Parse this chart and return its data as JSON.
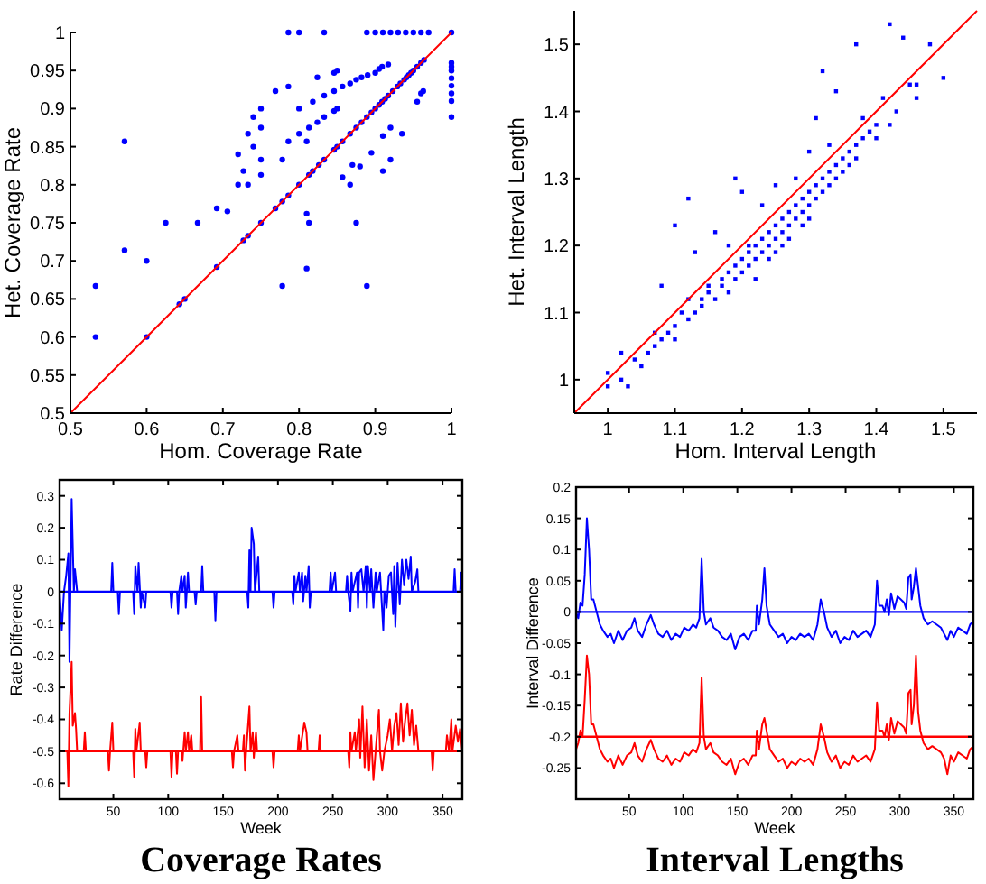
{
  "chart_data": [
    {
      "type": "scatter",
      "xlabel": "Hom. Coverage Rate",
      "ylabel": "Het. Coverage Rate",
      "xlim": [
        0.5,
        1
      ],
      "ylim": [
        0.5,
        1
      ],
      "xticks": [
        0.5,
        0.6,
        0.7,
        0.8,
        0.9,
        1
      ],
      "yticks": [
        0.5,
        0.55,
        0.6,
        0.65,
        0.7,
        0.75,
        0.8,
        0.85,
        0.9,
        0.95,
        1
      ],
      "series": [
        {
          "type": "scatter",
          "marker": "circle",
          "color": "#0000ff",
          "x": [
            0.533,
            0.533,
            0.571,
            0.571,
            0.6,
            0.625,
            0.667,
            0.692,
            0.706,
            0.72,
            0.72,
            0.727,
            0.733,
            0.733,
            0.74,
            0.74,
            0.75,
            0.75,
            0.75,
            0.75,
            0.769,
            0.778,
            0.778,
            0.786,
            0.786,
            0.786,
            0.8,
            0.8,
            0.8,
            0.81,
            0.81,
            0.81,
            0.813,
            0.813,
            0.818,
            0.824,
            0.824,
            0.833,
            0.833,
            0.833,
            0.846,
            0.846,
            0.846,
            0.85,
            0.85,
            0.857,
            0.857,
            0.867,
            0.867,
            0.87,
            0.875,
            0.875,
            0.88,
            0.882,
            0.889,
            0.889,
            0.89,
            0.895,
            0.9,
            0.905,
            0.909,
            0.91,
            0.91,
            0.917,
            0.92,
            0.92,
            0.9,
            0.91,
            0.92,
            0.93,
            0.94,
            0.95,
            0.96,
            0.97,
            0.935,
            0.955,
            0.96,
            0.963,
            1,
            1,
            1,
            1,
            1,
            1,
            1,
            1,
            1,
            0.6,
            0.643,
            0.65,
            0.692,
            0.727,
            0.733,
            0.75,
            0.769,
            0.778,
            0.786,
            0.8,
            0.813,
            0.818,
            0.826,
            0.833,
            0.846,
            0.85,
            0.857,
            0.867,
            0.875,
            0.882,
            0.889,
            0.895,
            0.9,
            0.905,
            0.909,
            0.913,
            0.917,
            0.923,
            0.929,
            0.933,
            0.938,
            0.941,
            0.944,
            0.947,
            0.95,
            0.955,
            0.96,
            0.964
          ],
          "values": [
            0.667,
            0.6,
            0.857,
            0.714,
            0.7,
            0.75,
            0.75,
            0.769,
            0.765,
            0.84,
            0.8,
            0.818,
            0.867,
            0.8,
            0.889,
            0.85,
            0.9,
            0.875,
            0.833,
            0.813,
            0.923,
            0.833,
            0.667,
            0.929,
            0.857,
            1,
            1,
            0.9,
            0.867,
            0.762,
            0.69,
            0.857,
            0.75,
            0.875,
            0.909,
            0.941,
            0.882,
            1,
            0.917,
            0.889,
            0.923,
            0.897,
            0.947,
            0.95,
            0.9,
            0.929,
            0.81,
            0.933,
            0.8,
            0.826,
            0.938,
            0.75,
            0.824,
            0.941,
            1,
            0.667,
            0.944,
            0.842,
            0.947,
            0.952,
            0.955,
            0.864,
            0.818,
            0.958,
            0.875,
            0.833,
            1,
            1,
            1,
            1,
            1,
            1,
            1,
            1,
            0.867,
            0.909,
            0.92,
            0.923,
            1,
            0.96,
            0.955,
            0.95,
            0.94,
            0.93,
            0.92,
            0.91,
            0.889,
            0.6,
            0.643,
            0.65,
            0.692,
            0.727,
            0.733,
            0.75,
            0.769,
            0.778,
            0.786,
            0.8,
            0.813,
            0.818,
            0.826,
            0.833,
            0.846,
            0.85,
            0.857,
            0.867,
            0.875,
            0.882,
            0.889,
            0.895,
            0.9,
            0.905,
            0.909,
            0.913,
            0.917,
            0.923,
            0.929,
            0.933,
            0.938,
            0.941,
            0.944,
            0.947,
            0.95,
            0.955,
            0.96,
            0.964
          ]
        },
        {
          "type": "line",
          "color": "#ff0000",
          "x": [
            0.5,
            1
          ],
          "values": [
            0.5,
            1
          ]
        }
      ]
    },
    {
      "type": "scatter",
      "xlabel": "Hom. Interval Length",
      "ylabel": "Het. Interval Length",
      "xlim": [
        0.95,
        1.55
      ],
      "ylim": [
        0.95,
        1.55
      ],
      "xticks": [
        1,
        1.1,
        1.2,
        1.3,
        1.4,
        1.5
      ],
      "yticks": [
        1,
        1.1,
        1.2,
        1.3,
        1.4,
        1.5
      ],
      "series": [
        {
          "type": "scatter",
          "marker": "square",
          "color": "#0000ff",
          "x": [
            1.0,
            1.0,
            1.02,
            1.02,
            1.03,
            1.04,
            1.05,
            1.06,
            1.07,
            1.07,
            1.08,
            1.08,
            1.09,
            1.1,
            1.1,
            1.1,
            1.11,
            1.12,
            1.12,
            1.12,
            1.13,
            1.13,
            1.14,
            1.14,
            1.15,
            1.15,
            1.16,
            1.16,
            1.17,
            1.17,
            1.18,
            1.18,
            1.18,
            1.19,
            1.19,
            1.19,
            1.2,
            1.2,
            1.2,
            1.21,
            1.21,
            1.21,
            1.22,
            1.22,
            1.22,
            1.23,
            1.23,
            1.23,
            1.24,
            1.24,
            1.24,
            1.25,
            1.25,
            1.25,
            1.25,
            1.26,
            1.26,
            1.26,
            1.27,
            1.27,
            1.27,
            1.28,
            1.28,
            1.28,
            1.29,
            1.29,
            1.29,
            1.3,
            1.3,
            1.3,
            1.3,
            1.31,
            1.31,
            1.31,
            1.32,
            1.32,
            1.32,
            1.33,
            1.33,
            1.33,
            1.34,
            1.34,
            1.34,
            1.35,
            1.35,
            1.36,
            1.36,
            1.37,
            1.37,
            1.37,
            1.38,
            1.38,
            1.39,
            1.4,
            1.4,
            1.41,
            1.42,
            1.42,
            1.43,
            1.44,
            1.45,
            1.46,
            1.46,
            1.48,
            1.5
          ],
          "values": [
            0.99,
            1.01,
            1.04,
            1.0,
            0.99,
            1.03,
            1.02,
            1.04,
            1.05,
            1.07,
            1.14,
            1.06,
            1.07,
            1.08,
            1.06,
            1.23,
            1.1,
            1.09,
            1.12,
            1.27,
            1.1,
            1.19,
            1.12,
            1.11,
            1.13,
            1.14,
            1.12,
            1.22,
            1.15,
            1.14,
            1.16,
            1.13,
            1.2,
            1.3,
            1.17,
            1.15,
            1.18,
            1.16,
            1.28,
            1.19,
            1.17,
            1.2,
            1.2,
            1.18,
            1.15,
            1.21,
            1.19,
            1.26,
            1.22,
            1.2,
            1.18,
            1.23,
            1.21,
            1.19,
            1.29,
            1.24,
            1.22,
            1.2,
            1.25,
            1.23,
            1.21,
            1.26,
            1.24,
            1.3,
            1.27,
            1.25,
            1.23,
            1.28,
            1.26,
            1.24,
            1.34,
            1.29,
            1.27,
            1.39,
            1.3,
            1.28,
            1.46,
            1.31,
            1.29,
            1.35,
            1.32,
            1.3,
            1.43,
            1.33,
            1.31,
            1.34,
            1.32,
            1.35,
            1.33,
            1.5,
            1.36,
            1.39,
            1.37,
            1.38,
            1.36,
            1.42,
            1.38,
            1.53,
            1.4,
            1.51,
            1.44,
            1.42,
            1.44,
            1.5,
            1.45
          ]
        },
        {
          "type": "line",
          "color": "#ff0000",
          "x": [
            0.95,
            1.55
          ],
          "values": [
            0.95,
            1.55
          ]
        }
      ]
    },
    {
      "type": "line",
      "xlabel": "Week",
      "ylabel": "Rate Difference",
      "xlim": [
        1,
        368
      ],
      "ylim": [
        -0.65,
        0.35
      ],
      "xticks": [
        50,
        100,
        150,
        200,
        250,
        300,
        350
      ],
      "yticks": [
        -0.6,
        -0.5,
        -0.4,
        -0.3,
        -0.2,
        -0.1,
        0,
        0.1,
        0.2,
        0.3
      ],
      "annotations": [
        "Coverage Rates"
      ],
      "ref_lines": [
        {
          "axis": "y",
          "value": 0,
          "color": "#0000ff"
        },
        {
          "axis": "y",
          "value": -0.5,
          "color": "#ff0000"
        }
      ],
      "series": [
        {
          "color": "#0000ff",
          "x": [
            1,
            3,
            5,
            7,
            9,
            10,
            12,
            14,
            15,
            17,
            48,
            49,
            50,
            54,
            55,
            56,
            68,
            69,
            70,
            72,
            73,
            75,
            76,
            79,
            80,
            102,
            103,
            104,
            108,
            109,
            110,
            112,
            113,
            115,
            116,
            118,
            119,
            124,
            125,
            126,
            130,
            131,
            132,
            142,
            143,
            144,
            172,
            173,
            174,
            175,
            176,
            178,
            179,
            182,
            183,
            195,
            196,
            197,
            213,
            214,
            215,
            216,
            219,
            220,
            222,
            223,
            225,
            226,
            228,
            229,
            230,
            247,
            248,
            249,
            252,
            253,
            262,
            263,
            264,
            266,
            267,
            268,
            272,
            273,
            274,
            276,
            278,
            280,
            281,
            282,
            284,
            285,
            287,
            289,
            290,
            293,
            294,
            296,
            297,
            299,
            301,
            303,
            305,
            306,
            307,
            309,
            311,
            313,
            315,
            317,
            319,
            321,
            322,
            325,
            327,
            328,
            360,
            361,
            362,
            366,
            367,
            368
          ],
          "values": [
            0,
            -0.12,
            0,
            0.05,
            0.12,
            -0.22,
            0.29,
            0,
            0.07,
            0,
            0,
            0.09,
            0,
            0,
            -0.07,
            0,
            0,
            -0.07,
            0.08,
            0,
            0.09,
            -0.05,
            0,
            -0.05,
            0,
            0,
            -0.05,
            0,
            0,
            -0.07,
            0,
            0.05,
            0,
            0.05,
            -0.05,
            0.06,
            0,
            0,
            -0.04,
            0,
            0,
            0.08,
            0,
            0,
            -0.09,
            0,
            0,
            -0.05,
            0.13,
            0,
            0.2,
            0.15,
            0,
            0.11,
            0,
            0,
            -0.05,
            0,
            0,
            -0.04,
            0.05,
            0,
            0.06,
            0,
            0.06,
            -0.03,
            0.05,
            0,
            0.08,
            -0.05,
            0,
            0,
            0.06,
            0,
            0.06,
            0,
            0,
            0.05,
            0,
            -0.06,
            0.06,
            0,
            0.06,
            -0.05,
            0.06,
            0.07,
            0,
            0.08,
            -0.05,
            0.08,
            0,
            0.07,
            -0.05,
            0.06,
            0,
            0.06,
            0,
            -0.12,
            0,
            -0.05,
            0.05,
            0.06,
            -0.07,
            0.08,
            -0.11,
            0.09,
            -0.04,
            0.1,
            0.02,
            0.1,
            0.04,
            0.11,
            0,
            0.03,
            0.07,
            0,
            0,
            0.07,
            0,
            0,
            0.06,
            0
          ]
        },
        {
          "color": "#ff0000",
          "x": [
            1,
            8,
            9,
            10,
            12,
            13,
            15,
            16,
            17,
            23,
            24,
            25,
            45,
            46,
            47,
            49,
            50,
            68,
            69,
            70,
            71,
            74,
            75,
            79,
            80,
            81,
            102,
            103,
            104,
            107,
            108,
            109,
            112,
            113,
            115,
            116,
            118,
            119,
            121,
            122,
            129,
            130,
            131,
            158,
            159,
            160,
            163,
            164,
            168,
            169,
            170,
            171,
            174,
            175,
            177,
            178,
            180,
            181,
            195,
            196,
            197,
            218,
            219,
            220,
            224,
            226,
            227,
            237,
            238,
            239,
            264,
            265,
            266,
            267,
            270,
            271,
            274,
            275,
            277,
            279,
            281,
            283,
            285,
            287,
            289,
            292,
            293,
            295,
            297,
            300,
            302,
            304,
            306,
            308,
            310,
            312,
            314,
            316,
            318,
            320,
            322,
            324,
            326,
            328,
            340,
            341,
            342,
            353,
            354,
            356,
            358,
            359,
            362,
            364,
            366,
            368
          ],
          "values": [
            -0.5,
            -0.5,
            -0.61,
            -0.38,
            -0.22,
            -0.42,
            -0.38,
            -0.43,
            -0.5,
            -0.5,
            -0.44,
            -0.5,
            -0.5,
            -0.56,
            -0.5,
            -0.41,
            -0.5,
            -0.5,
            -0.58,
            -0.43,
            -0.5,
            -0.41,
            -0.5,
            -0.5,
            -0.55,
            -0.5,
            -0.5,
            -0.58,
            -0.5,
            -0.5,
            -0.57,
            -0.5,
            -0.5,
            -0.53,
            -0.44,
            -0.5,
            -0.44,
            -0.5,
            -0.45,
            -0.5,
            -0.5,
            -0.33,
            -0.5,
            -0.5,
            -0.55,
            -0.5,
            -0.45,
            -0.5,
            -0.5,
            -0.45,
            -0.56,
            -0.5,
            -0.36,
            -0.5,
            -0.44,
            -0.52,
            -0.44,
            -0.5,
            -0.5,
            -0.55,
            -0.5,
            -0.5,
            -0.45,
            -0.5,
            -0.41,
            -0.44,
            -0.5,
            -0.5,
            -0.45,
            -0.5,
            -0.5,
            -0.55,
            -0.44,
            -0.5,
            -0.44,
            -0.5,
            -0.4,
            -0.52,
            -0.36,
            -0.55,
            -0.4,
            -0.56,
            -0.45,
            -0.59,
            -0.5,
            -0.37,
            -0.5,
            -0.56,
            -0.5,
            -0.45,
            -0.4,
            -0.5,
            -0.42,
            -0.38,
            -0.48,
            -0.35,
            -0.47,
            -0.4,
            -0.35,
            -0.45,
            -0.37,
            -0.48,
            -0.42,
            -0.5,
            -0.5,
            -0.56,
            -0.5,
            -0.5,
            -0.45,
            -0.5,
            -0.4,
            -0.5,
            -0.42,
            -0.47,
            -0.43,
            -0.5
          ]
        }
      ]
    },
    {
      "type": "line",
      "xlabel": "Week",
      "ylabel": "Interval Difference",
      "xlim": [
        1,
        368
      ],
      "ylim": [
        -0.3,
        0.2
      ],
      "xticks": [
        50,
        100,
        150,
        200,
        250,
        300,
        350
      ],
      "yticks": [
        {
          "value": -0.3,
          "label": null
        },
        -0.25,
        -0.2,
        -0.15,
        -0.1,
        -0.05,
        0,
        0.05,
        0.1,
        0.15,
        0.2
      ],
      "annotations": [
        "Interval Lengths"
      ],
      "ref_lines": [
        {
          "axis": "y",
          "value": 0,
          "color": "#0000ff"
        },
        {
          "axis": "y",
          "value": -0.2,
          "color": "#ff0000"
        }
      ],
      "series": [
        {
          "color": "#0000ff",
          "x": [
            1,
            3,
            5,
            7,
            9,
            11,
            13,
            15,
            17,
            20,
            23,
            26,
            30,
            33,
            36,
            40,
            44,
            48,
            52,
            55,
            58,
            62,
            66,
            70,
            73,
            77,
            81,
            85,
            89,
            93,
            97,
            101,
            105,
            109,
            112,
            115,
            117,
            119,
            121,
            125,
            128,
            132,
            136,
            140,
            144,
            148,
            152,
            156,
            160,
            164,
            167,
            168,
            170,
            173,
            175,
            177,
            180,
            184,
            188,
            192,
            196,
            200,
            204,
            208,
            212,
            216,
            220,
            224,
            227,
            230,
            233,
            237,
            241,
            245,
            249,
            253,
            257,
            261,
            265,
            269,
            273,
            277,
            279,
            281,
            284,
            286,
            288,
            290,
            292,
            295,
            298,
            301,
            304,
            306,
            308,
            310,
            311,
            313,
            315,
            317,
            319,
            322,
            326,
            330,
            334,
            338,
            341,
            344,
            347,
            350,
            354,
            358,
            362,
            365,
            368
          ],
          "values": [
            0,
            -0.01,
            0.015,
            0.01,
            0.06,
            0.15,
            0.1,
            0.02,
            0.02,
            0,
            -0.02,
            -0.03,
            -0.04,
            -0.035,
            -0.05,
            -0.03,
            -0.045,
            -0.03,
            -0.025,
            -0.01,
            -0.03,
            -0.04,
            -0.02,
            -0.005,
            -0.02,
            -0.035,
            -0.04,
            -0.03,
            -0.045,
            -0.035,
            -0.04,
            -0.025,
            -0.03,
            -0.02,
            -0.025,
            -0.01,
            0.085,
            0,
            -0.02,
            -0.01,
            -0.025,
            -0.03,
            -0.04,
            -0.045,
            -0.035,
            -0.06,
            -0.04,
            -0.035,
            -0.045,
            -0.03,
            -0.03,
            0.01,
            -0.02,
            0.02,
            0.07,
            0.01,
            -0.02,
            -0.03,
            -0.04,
            -0.035,
            -0.05,
            -0.04,
            -0.045,
            -0.035,
            -0.04,
            -0.035,
            -0.045,
            -0.02,
            0.02,
            0,
            -0.025,
            -0.04,
            -0.03,
            -0.05,
            -0.04,
            -0.045,
            -0.03,
            -0.04,
            -0.035,
            -0.03,
            -0.04,
            -0.02,
            0.05,
            0.01,
            0.01,
            0,
            0.02,
            -0.005,
            0.03,
            0.005,
            0.025,
            0.02,
            0.015,
            0.005,
            0.055,
            0.06,
            0.02,
            0.04,
            0.07,
            0.04,
            0.01,
            -0.01,
            -0.02,
            -0.015,
            -0.02,
            -0.025,
            -0.035,
            -0.045,
            -0.03,
            -0.04,
            -0.025,
            -0.03,
            -0.035,
            -0.02,
            -0.015
          ]
        },
        {
          "color": "#ff0000",
          "x": [
            1,
            3,
            5,
            7,
            9,
            11,
            13,
            15,
            17,
            20,
            23,
            26,
            30,
            33,
            36,
            40,
            44,
            48,
            52,
            55,
            58,
            62,
            66,
            70,
            73,
            77,
            81,
            85,
            89,
            93,
            97,
            101,
            105,
            109,
            112,
            115,
            117,
            119,
            121,
            125,
            128,
            132,
            136,
            140,
            144,
            148,
            152,
            156,
            160,
            164,
            167,
            168,
            170,
            173,
            175,
            177,
            180,
            184,
            188,
            192,
            196,
            200,
            204,
            208,
            212,
            216,
            220,
            224,
            227,
            230,
            233,
            237,
            241,
            245,
            249,
            253,
            257,
            261,
            265,
            269,
            273,
            277,
            279,
            281,
            284,
            286,
            288,
            290,
            292,
            295,
            298,
            301,
            304,
            306,
            308,
            310,
            311,
            313,
            315,
            317,
            319,
            322,
            326,
            330,
            334,
            338,
            341,
            344,
            347,
            350,
            354,
            358,
            362,
            365,
            368
          ],
          "values": [
            -0.22,
            -0.21,
            -0.19,
            -0.2,
            -0.14,
            -0.07,
            -0.1,
            -0.18,
            -0.18,
            -0.2,
            -0.22,
            -0.23,
            -0.24,
            -0.235,
            -0.25,
            -0.23,
            -0.245,
            -0.23,
            -0.225,
            -0.21,
            -0.23,
            -0.24,
            -0.22,
            -0.205,
            -0.22,
            -0.235,
            -0.24,
            -0.23,
            -0.245,
            -0.235,
            -0.24,
            -0.225,
            -0.23,
            -0.22,
            -0.225,
            -0.21,
            -0.105,
            -0.2,
            -0.22,
            -0.21,
            -0.225,
            -0.23,
            -0.24,
            -0.245,
            -0.235,
            -0.26,
            -0.24,
            -0.235,
            -0.245,
            -0.23,
            -0.23,
            -0.19,
            -0.22,
            -0.18,
            -0.17,
            -0.19,
            -0.22,
            -0.23,
            -0.24,
            -0.235,
            -0.25,
            -0.24,
            -0.245,
            -0.235,
            -0.24,
            -0.235,
            -0.245,
            -0.22,
            -0.18,
            -0.2,
            -0.225,
            -0.24,
            -0.23,
            -0.25,
            -0.24,
            -0.245,
            -0.23,
            -0.24,
            -0.235,
            -0.23,
            -0.24,
            -0.22,
            -0.145,
            -0.19,
            -0.19,
            -0.2,
            -0.18,
            -0.205,
            -0.17,
            -0.195,
            -0.175,
            -0.18,
            -0.185,
            -0.195,
            -0.13,
            -0.125,
            -0.18,
            -0.15,
            -0.07,
            -0.16,
            -0.19,
            -0.21,
            -0.22,
            -0.215,
            -0.22,
            -0.225,
            -0.235,
            -0.26,
            -0.23,
            -0.24,
            -0.225,
            -0.23,
            -0.235,
            -0.22,
            -0.215
          ]
        }
      ]
    }
  ]
}
